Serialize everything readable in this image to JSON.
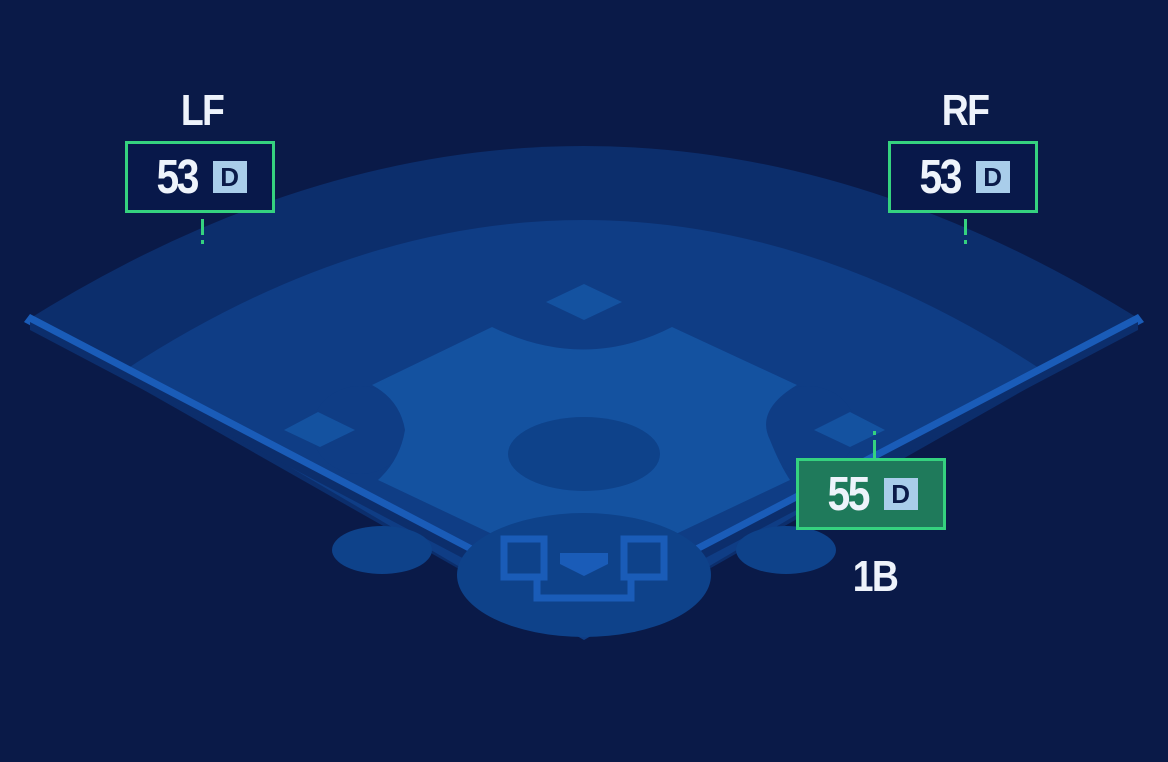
{
  "colors": {
    "background": "#0a1a48",
    "accent": "#35d27f",
    "highlight": "#1f7a5b",
    "grade_bg": "#a9cdea"
  },
  "positions": [
    {
      "label": "LF",
      "rating": "53",
      "grade": "D",
      "highlighted": false
    },
    {
      "label": "RF",
      "rating": "53",
      "grade": "D",
      "highlighted": false
    },
    {
      "label": "1B",
      "rating": "55",
      "grade": "D",
      "highlighted": true
    }
  ]
}
